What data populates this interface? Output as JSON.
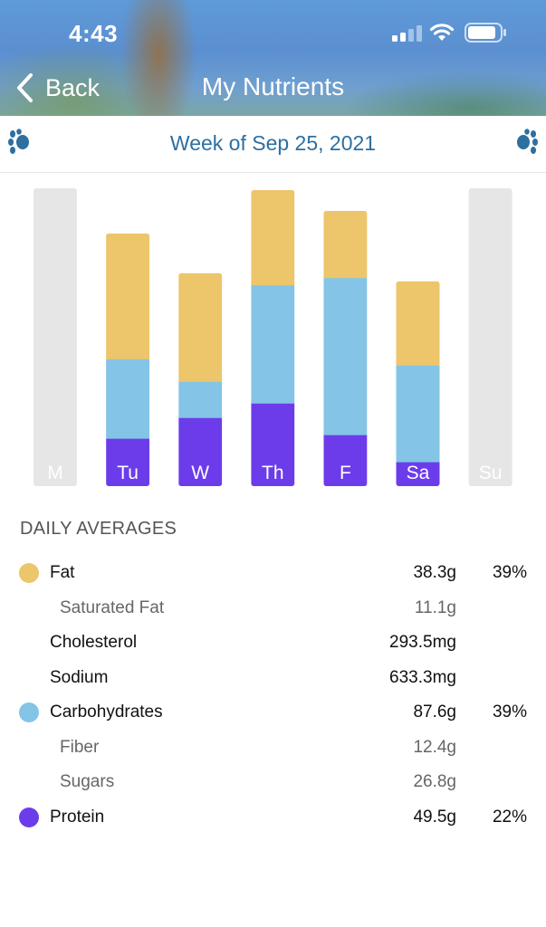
{
  "status_bar": {
    "time": "4:43"
  },
  "nav": {
    "back_label": "Back",
    "title": "My Nutrients"
  },
  "week": {
    "label": "Week of Sep 25, 2021"
  },
  "colors": {
    "fat": "#EDC56A",
    "carbohydrates": "#84C4E6",
    "protein": "#6C3CEB",
    "empty": "#E6E6E6",
    "accent": "#2D6FA1"
  },
  "chart_data": {
    "type": "bar",
    "stacked": true,
    "title": "",
    "xlabel": "",
    "ylabel": "",
    "categories": [
      "M",
      "Tu",
      "W",
      "Th",
      "F",
      "Sa",
      "Su"
    ],
    "series": [
      {
        "name": "Protein",
        "values": [
          0,
          53,
          76,
          92,
          57,
          27,
          0
        ]
      },
      {
        "name": "Carbohydrates",
        "values": [
          0,
          88,
          40,
          131,
          174,
          107,
          0
        ]
      },
      {
        "name": "Fat",
        "values": [
          0,
          139,
          120,
          105,
          74,
          93,
          0
        ]
      }
    ],
    "ylim": [
      0,
      330
    ]
  },
  "averages": {
    "title": "DAILY AVERAGES",
    "rows": [
      {
        "label": "Fat",
        "value": "38.3g",
        "percent": "39%"
      },
      {
        "label": "Saturated Fat",
        "value": "11.1g"
      },
      {
        "label": "Cholesterol",
        "value": "293.5mg"
      },
      {
        "label": "Sodium",
        "value": "633.3mg"
      },
      {
        "label": "Carbohydrates",
        "value": "87.6g",
        "percent": "39%"
      },
      {
        "label": "Fiber",
        "value": "12.4g"
      },
      {
        "label": "Sugars",
        "value": "26.8g"
      },
      {
        "label": "Protein",
        "value": "49.5g",
        "percent": "22%"
      }
    ]
  }
}
